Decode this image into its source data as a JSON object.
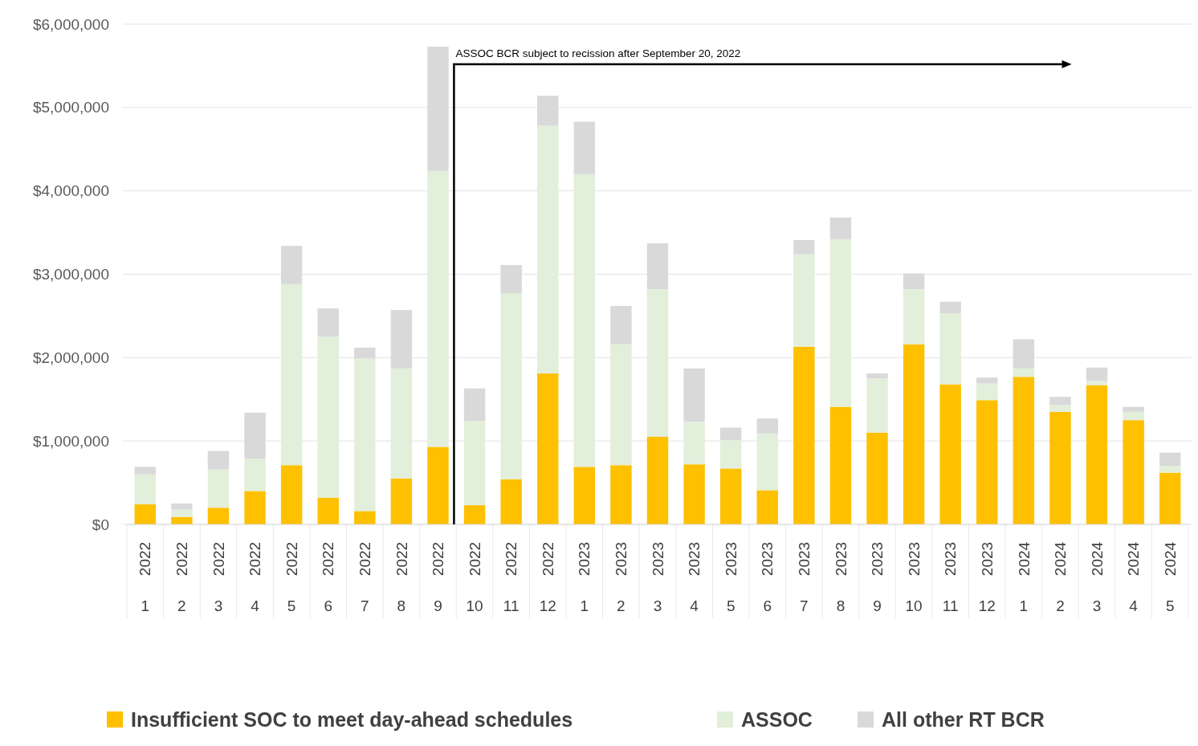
{
  "chart_data": {
    "type": "bar",
    "stacked": true,
    "categories": [
      "2022\n1",
      "2022\n2",
      "2022\n3",
      "2022\n4",
      "2022\n5",
      "2022\n6",
      "2022\n7",
      "2022\n8",
      "2022\n9",
      "2022\n10",
      "2022\n11",
      "2022\n12",
      "2023\n1",
      "2023\n2",
      "2023\n3",
      "2023\n4",
      "2023\n5",
      "2023\n6",
      "2023\n7",
      "2023\n8",
      "2023\n9",
      "2023\n10",
      "2023\n11",
      "2023\n12",
      "2024\n1",
      "2024\n2",
      "2024\n3",
      "2024\n4",
      "2024\n5"
    ],
    "series": [
      {
        "name": "Insufficient SOC to meet day-ahead schedules",
        "color": "#ffc000",
        "values": [
          240000,
          90000,
          200000,
          400000,
          710000,
          320000,
          160000,
          550000,
          930000,
          230000,
          540000,
          1810000,
          690000,
          710000,
          1050000,
          720000,
          670000,
          410000,
          2130000,
          1410000,
          1100000,
          2160000,
          1680000,
          1490000,
          1770000,
          1350000,
          1670000,
          1250000,
          620000
        ]
      },
      {
        "name": "ASSOC",
        "color": "#e2efda",
        "values": [
          360000,
          90000,
          460000,
          390000,
          2170000,
          1930000,
          1830000,
          1320000,
          3310000,
          1010000,
          2230000,
          2970000,
          3510000,
          1450000,
          1770000,
          510000,
          340000,
          680000,
          1110000,
          2010000,
          650000,
          660000,
          850000,
          200000,
          100000,
          80000,
          50000,
          100000,
          80000
        ]
      },
      {
        "name": "All other RT BCR",
        "color": "#d9d9d9",
        "values": [
          90000,
          70000,
          220000,
          550000,
          460000,
          340000,
          130000,
          700000,
          1490000,
          390000,
          340000,
          360000,
          630000,
          460000,
          550000,
          640000,
          150000,
          180000,
          170000,
          260000,
          60000,
          190000,
          140000,
          70000,
          350000,
          100000,
          160000,
          60000,
          160000
        ]
      }
    ],
    "ylim": [
      0,
      6000000
    ],
    "yticks": [
      {
        "value": 0,
        "label": "$0"
      },
      {
        "value": 1000000,
        "label": "$1,000,000"
      },
      {
        "value": 2000000,
        "label": "$2,000,000"
      },
      {
        "value": 3000000,
        "label": "$3,000,000"
      },
      {
        "value": 4000000,
        "label": "$4,000,000"
      },
      {
        "value": 5000000,
        "label": "$5,000,000"
      },
      {
        "value": 6000000,
        "label": "$6,000,000"
      }
    ],
    "grid": "y",
    "legend": "bottom",
    "annotations": [
      "ASSOC BCR subject to recission after September 20, 2022"
    ]
  }
}
